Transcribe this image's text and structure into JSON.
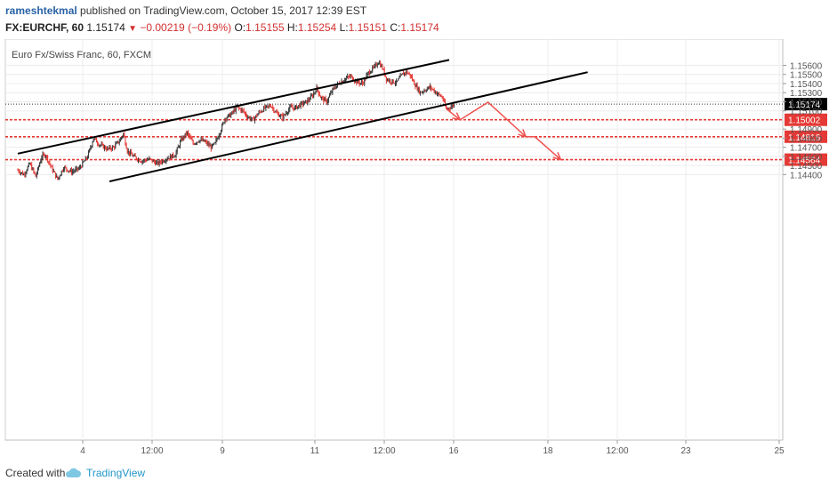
{
  "header": {
    "author": "rameshtekmal",
    "published_text": " published on TradingView.com, October 15, 2017 12:39 EST",
    "symbol": "FX:EURCHF, 60",
    "last": "1.15174",
    "change": "−0.00219 (−0.19%)",
    "o_label": "O:",
    "o_value": "1.15155",
    "h_label": "H:",
    "h_value": "1.15254",
    "l_label": "L:",
    "l_value": "1.15151",
    "c_label": "C:",
    "c_value": "1.15174"
  },
  "footer": {
    "created_with": "Created with",
    "brand": "TradingView"
  },
  "colors": {
    "up": "#3a3a3a",
    "down": "#e53935",
    "level": "#e53935",
    "projection": "#ef5350",
    "channel": "#000000",
    "current_bg": "#000000",
    "level_bg": "#e53935",
    "axis_text": "#555555",
    "grid": "#ececec"
  },
  "chart_data": {
    "type": "candlestick",
    "title": "Euro Fx/Swiss Franc, 60, FXCM",
    "x_ticks": [
      "4",
      "12:00",
      "9",
      "11",
      "12:00",
      "16",
      "18",
      "12:00",
      "23",
      "25"
    ],
    "y_ticks": [
      "1.15600",
      "1.15500",
      "1.15400",
      "1.15300",
      "1.15200",
      "1.15100",
      "1.14900",
      "1.14800",
      "1.14700",
      "1.14600",
      "1.14500",
      "1.14400"
    ],
    "ylim": [
      1.1433,
      1.1566
    ],
    "current_price": {
      "label": "1.15174",
      "value": 1.15174
    },
    "levels": [
      {
        "label": "1.15002",
        "value": 1.15002
      },
      {
        "label": "1.14816",
        "value": 1.14816
      },
      {
        "label": "1.14564",
        "value": 1.14564
      }
    ],
    "price_path": [
      [
        0,
        1.1445
      ],
      [
        6,
        1.144
      ],
      [
        12,
        1.1452
      ],
      [
        18,
        1.1438
      ],
      [
        24,
        1.146
      ],
      [
        28,
        1.1462
      ],
      [
        34,
        1.1447
      ],
      [
        40,
        1.1435
      ],
      [
        46,
        1.1448
      ],
      [
        54,
        1.1443
      ],
      [
        62,
        1.1447
      ],
      [
        70,
        1.146
      ],
      [
        76,
        1.148
      ],
      [
        82,
        1.1473
      ],
      [
        90,
        1.1468
      ],
      [
        96,
        1.147
      ],
      [
        102,
        1.1477
      ],
      [
        106,
        1.1485
      ],
      [
        110,
        1.1466
      ],
      [
        116,
        1.146
      ],
      [
        124,
        1.1455
      ],
      [
        132,
        1.1457
      ],
      [
        140,
        1.1452
      ],
      [
        150,
        1.1458
      ],
      [
        158,
        1.1462
      ],
      [
        164,
        1.1478
      ],
      [
        170,
        1.1486
      ],
      [
        176,
        1.1474
      ],
      [
        182,
        1.1478
      ],
      [
        188,
        1.1476
      ],
      [
        194,
        1.147
      ],
      [
        198,
        1.1474
      ],
      [
        204,
        1.149
      ],
      [
        208,
        1.1502
      ],
      [
        214,
        1.1506
      ],
      [
        220,
        1.1514
      ],
      [
        226,
        1.151
      ],
      [
        230,
        1.1504
      ],
      [
        236,
        1.15
      ],
      [
        242,
        1.1508
      ],
      [
        248,
        1.1513
      ],
      [
        254,
        1.1516
      ],
      [
        260,
        1.1507
      ],
      [
        266,
        1.1503
      ],
      [
        270,
        1.1509
      ],
      [
        274,
        1.1514
      ],
      [
        278,
        1.1513
      ],
      [
        284,
        1.1517
      ],
      [
        290,
        1.152
      ],
      [
        296,
        1.1527
      ],
      [
        300,
        1.1535
      ],
      [
        304,
        1.1525
      ],
      [
        310,
        1.152
      ],
      [
        316,
        1.1533
      ],
      [
        322,
        1.154
      ],
      [
        328,
        1.1545
      ],
      [
        334,
        1.1548
      ],
      [
        340,
        1.1542
      ],
      [
        346,
        1.154
      ],
      [
        352,
        1.1552
      ],
      [
        358,
        1.1558
      ],
      [
        362,
        1.1564
      ],
      [
        366,
        1.1557
      ],
      [
        370,
        1.1545
      ],
      [
        374,
        1.1543
      ],
      [
        380,
        1.1541
      ],
      [
        386,
        1.155
      ],
      [
        390,
        1.1553
      ],
      [
        394,
        1.1549
      ],
      [
        398,
        1.154
      ],
      [
        404,
        1.153
      ],
      [
        410,
        1.1534
      ],
      [
        414,
        1.1536
      ],
      [
        420,
        1.153
      ],
      [
        426,
        1.1525
      ],
      [
        430,
        1.1512
      ],
      [
        434,
        1.1514
      ],
      [
        438,
        1.1517
      ]
    ],
    "channel_lines": [
      {
        "from": [
          0,
          1.1463
        ],
        "to": [
          433,
          1.1566
        ]
      },
      {
        "from": [
          92,
          1.14325
        ],
        "to": [
          572,
          1.15525
        ]
      }
    ],
    "projection_path": [
      [
        430,
        1.15123
      ],
      [
        444,
        1.15002
      ],
      [
        472,
        1.15195
      ],
      [
        510,
        1.14816
      ],
      [
        519,
        1.14816
      ],
      [
        545,
        1.14564
      ]
    ]
  }
}
